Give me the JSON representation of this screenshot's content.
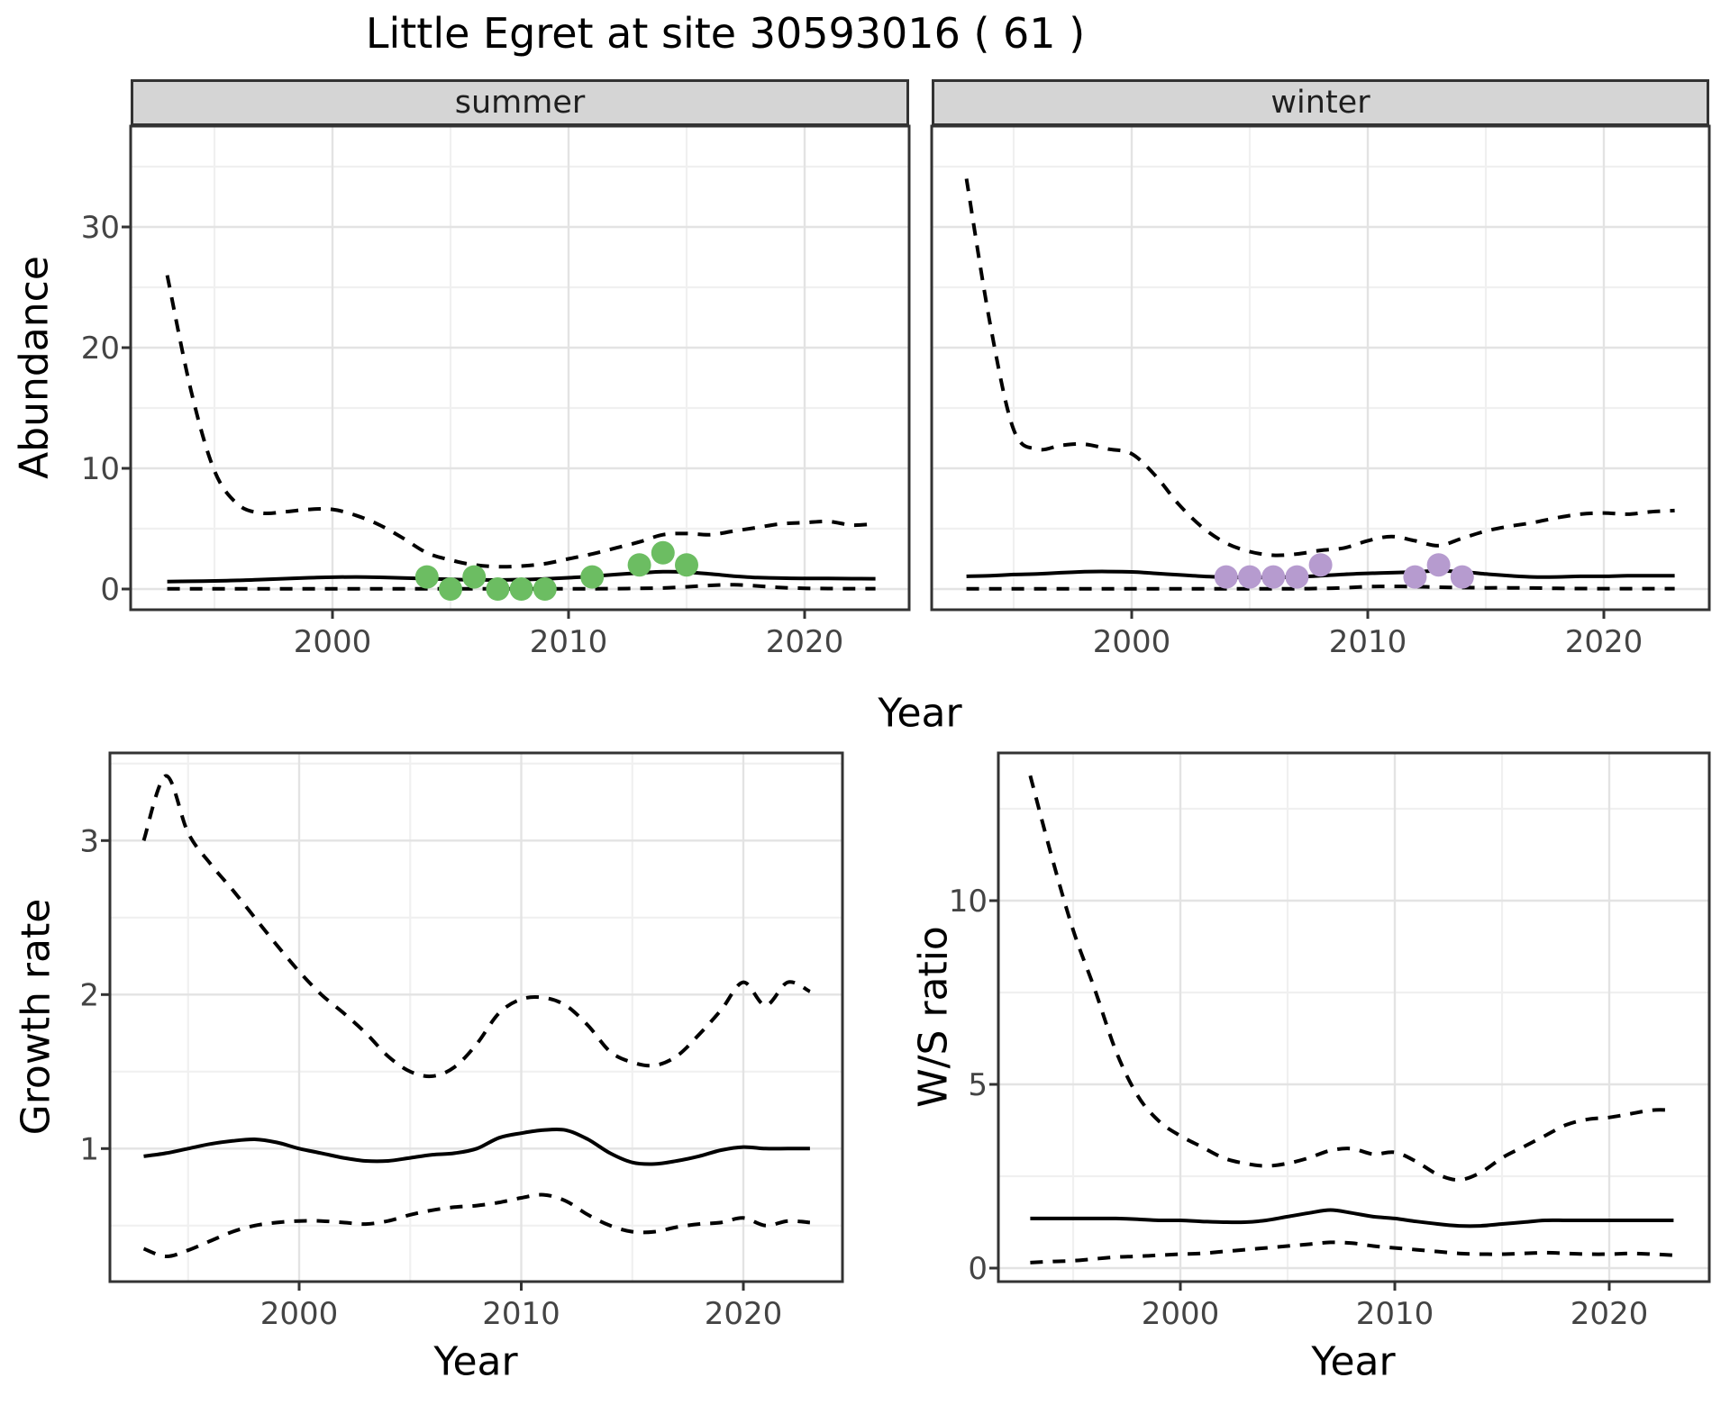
{
  "title": "Little Egret at site 30593016 ( 61 )",
  "colors": {
    "summer_points": "#6cbd62",
    "winter_points": "#b69bcf",
    "line": "#000000",
    "grid_major": "#e3e3e3",
    "grid_minor": "#f0f0f0",
    "strip_bg": "#d5d5d5",
    "panel_border": "#333333",
    "tick_text": "#444444"
  },
  "chart_data": [
    {
      "id": "abundance-summer",
      "type": "line",
      "facet": "summer",
      "xlabel": "Year",
      "ylabel": "Abundance",
      "x_ticks": [
        2000,
        2010,
        2020
      ],
      "x_minor": [
        1995,
        2005,
        2015
      ],
      "y_ticks": [
        0,
        10,
        20,
        30
      ],
      "y_minor": [
        5,
        15,
        25,
        35
      ],
      "x": [
        1993,
        1994,
        1995,
        1996,
        1997,
        1998,
        1999,
        2000,
        2001,
        2002,
        2003,
        2004,
        2005,
        2006,
        2007,
        2008,
        2009,
        2010,
        2011,
        2012,
        2013,
        2014,
        2015,
        2016,
        2017,
        2018,
        2019,
        2020,
        2021,
        2022,
        2023
      ],
      "series": [
        {
          "name": "upper_ci",
          "style": "dashed",
          "y": [
            26.0,
            16.5,
            9.8,
            7.0,
            6.3,
            6.4,
            6.6,
            6.6,
            6.1,
            5.3,
            4.2,
            3.0,
            2.4,
            2.0,
            1.85,
            1.9,
            2.1,
            2.5,
            2.9,
            3.4,
            3.9,
            4.5,
            4.6,
            4.5,
            4.8,
            5.1,
            5.4,
            5.5,
            5.6,
            5.3,
            5.4
          ]
        },
        {
          "name": "mean",
          "style": "solid",
          "y": [
            0.62,
            0.64,
            0.67,
            0.72,
            0.78,
            0.86,
            0.93,
            0.98,
            1.0,
            0.97,
            0.92,
            0.86,
            0.8,
            0.76,
            0.75,
            0.78,
            0.84,
            0.93,
            1.05,
            1.2,
            1.33,
            1.43,
            1.4,
            1.25,
            1.07,
            0.95,
            0.9,
            0.88,
            0.88,
            0.86,
            0.85
          ]
        },
        {
          "name": "lower_ci",
          "style": "dashed",
          "y": [
            0.02,
            0.02,
            0.02,
            0.02,
            0.02,
            0.02,
            0.02,
            0.02,
            0.02,
            0.02,
            0.02,
            0.02,
            0.02,
            0.02,
            0.02,
            0.02,
            0.02,
            0.02,
            0.02,
            0.03,
            0.05,
            0.08,
            0.18,
            0.3,
            0.35,
            0.25,
            0.12,
            0.06,
            0.04,
            0.03,
            0.03
          ]
        }
      ],
      "points": {
        "name": "observed-counts-summer",
        "color_key": "summer_points",
        "x": [
          2004,
          2005,
          2006,
          2007,
          2008,
          2009,
          2011,
          2013,
          2014,
          2015
        ],
        "y": [
          1,
          0,
          1,
          0,
          0,
          0,
          1,
          2,
          3,
          2
        ]
      }
    },
    {
      "id": "abundance-winter",
      "type": "line",
      "facet": "winter",
      "xlabel": "Year",
      "ylabel": "Abundance",
      "x_ticks": [
        2000,
        2010,
        2020
      ],
      "x_minor": [
        1995,
        2005,
        2015
      ],
      "y_ticks": [
        0,
        10,
        20,
        30
      ],
      "y_minor": [
        5,
        15,
        25,
        35
      ],
      "x": [
        1993,
        1994,
        1995,
        1996,
        1997,
        1998,
        1999,
        2000,
        2001,
        2002,
        2003,
        2004,
        2005,
        2006,
        2007,
        2008,
        2009,
        2010,
        2011,
        2012,
        2013,
        2014,
        2015,
        2016,
        2017,
        2018,
        2019,
        2020,
        2021,
        2022,
        2023
      ],
      "series": [
        {
          "name": "upper_ci",
          "style": "dashed",
          "y": [
            34,
            22,
            13.2,
            11.6,
            11.9,
            12.0,
            11.6,
            11.2,
            9.4,
            7.0,
            5.1,
            3.8,
            3.1,
            2.8,
            2.9,
            3.2,
            3.4,
            4.0,
            4.35,
            4.0,
            3.6,
            4.2,
            4.8,
            5.2,
            5.5,
            5.9,
            6.2,
            6.3,
            6.2,
            6.4,
            6.5
          ]
        },
        {
          "name": "mean",
          "style": "solid",
          "y": [
            1.05,
            1.1,
            1.2,
            1.25,
            1.35,
            1.43,
            1.45,
            1.42,
            1.3,
            1.17,
            1.05,
            0.98,
            0.95,
            0.97,
            1.0,
            1.1,
            1.22,
            1.3,
            1.35,
            1.42,
            1.5,
            1.42,
            1.25,
            1.1,
            1.0,
            1.0,
            1.05,
            1.05,
            1.1,
            1.1,
            1.1
          ]
        },
        {
          "name": "lower_ci",
          "style": "dashed",
          "y": [
            0.02,
            0.02,
            0.02,
            0.02,
            0.02,
            0.02,
            0.02,
            0.02,
            0.02,
            0.02,
            0.02,
            0.02,
            0.02,
            0.02,
            0.02,
            0.05,
            0.1,
            0.2,
            0.22,
            0.2,
            0.15,
            0.12,
            0.1,
            0.1,
            0.08,
            0.05,
            0.04,
            0.03,
            0.03,
            0.03,
            0.03
          ]
        }
      ],
      "points": {
        "name": "observed-counts-winter",
        "color_key": "winter_points",
        "x": [
          2004,
          2005,
          2006,
          2007,
          2008,
          2012,
          2013,
          2014
        ],
        "y": [
          1,
          1,
          1,
          1,
          2,
          1,
          2,
          1
        ]
      }
    },
    {
      "id": "growth-rate",
      "type": "line",
      "facet": null,
      "xlabel": "Year",
      "ylabel": "Growth rate",
      "x_ticks": [
        2000,
        2010,
        2020
      ],
      "x_minor": [
        1995,
        2005,
        2015
      ],
      "y_ticks": [
        1,
        2,
        3
      ],
      "y_minor": [
        0.5,
        1.5,
        2.5,
        3.5
      ],
      "x": [
        1993,
        1994,
        1995,
        1996,
        1997,
        1998,
        1999,
        2000,
        2001,
        2002,
        2003,
        2004,
        2005,
        2006,
        2007,
        2008,
        2009,
        2010,
        2011,
        2012,
        2013,
        2014,
        2015,
        2016,
        2017,
        2018,
        2019,
        2020,
        2021,
        2022,
        2023
      ],
      "series": [
        {
          "name": "upper_ci",
          "style": "dashed",
          "y": [
            3.0,
            3.42,
            3.05,
            2.85,
            2.68,
            2.5,
            2.32,
            2.15,
            2.0,
            1.88,
            1.75,
            1.6,
            1.5,
            1.47,
            1.53,
            1.68,
            1.88,
            1.97,
            1.98,
            1.93,
            1.8,
            1.63,
            1.56,
            1.54,
            1.6,
            1.74,
            1.9,
            2.08,
            1.93,
            2.08,
            2.02
          ]
        },
        {
          "name": "mean",
          "style": "solid",
          "y": [
            0.95,
            0.97,
            1.0,
            1.03,
            1.05,
            1.06,
            1.04,
            1.0,
            0.97,
            0.94,
            0.92,
            0.92,
            0.94,
            0.96,
            0.97,
            1.0,
            1.07,
            1.1,
            1.12,
            1.12,
            1.06,
            0.97,
            0.91,
            0.9,
            0.92,
            0.95,
            0.99,
            1.01,
            1.0,
            1.0,
            1.0
          ]
        },
        {
          "name": "lower_ci",
          "style": "dashed",
          "y": [
            0.35,
            0.3,
            0.34,
            0.4,
            0.46,
            0.5,
            0.52,
            0.53,
            0.53,
            0.52,
            0.51,
            0.53,
            0.57,
            0.6,
            0.62,
            0.63,
            0.65,
            0.68,
            0.7,
            0.66,
            0.57,
            0.5,
            0.46,
            0.46,
            0.49,
            0.51,
            0.52,
            0.55,
            0.5,
            0.53,
            0.52
          ]
        }
      ],
      "points": null
    },
    {
      "id": "ws-ratio",
      "type": "line",
      "facet": null,
      "xlabel": "Year",
      "ylabel": "W/S ratio",
      "x_ticks": [
        2000,
        2010,
        2020
      ],
      "x_minor": [
        1995,
        2005,
        2015
      ],
      "y_ticks": [
        0,
        5,
        10
      ],
      "y_minor": [
        2.5,
        7.5,
        12.5
      ],
      "x": [
        1993,
        1994,
        1995,
        1996,
        1997,
        1998,
        1999,
        2000,
        2001,
        2002,
        2003,
        2004,
        2005,
        2006,
        2007,
        2008,
        2009,
        2010,
        2011,
        2012,
        2013,
        2014,
        2015,
        2016,
        2017,
        2018,
        2019,
        2020,
        2021,
        2022,
        2023
      ],
      "series": [
        {
          "name": "upper_ci",
          "style": "dashed",
          "y": [
            13.4,
            11.2,
            9.2,
            7.6,
            5.9,
            4.7,
            4.0,
            3.6,
            3.3,
            3.0,
            2.85,
            2.78,
            2.85,
            3.0,
            3.2,
            3.25,
            3.1,
            3.15,
            2.9,
            2.55,
            2.4,
            2.6,
            3.0,
            3.3,
            3.6,
            3.9,
            4.05,
            4.1,
            4.2,
            4.3,
            4.3
          ]
        },
        {
          "name": "mean",
          "style": "solid",
          "y": [
            1.35,
            1.35,
            1.35,
            1.35,
            1.35,
            1.33,
            1.3,
            1.3,
            1.27,
            1.25,
            1.25,
            1.3,
            1.4,
            1.5,
            1.58,
            1.5,
            1.4,
            1.35,
            1.27,
            1.2,
            1.15,
            1.15,
            1.2,
            1.25,
            1.3,
            1.3,
            1.3,
            1.3,
            1.3,
            1.3,
            1.3
          ]
        },
        {
          "name": "lower_ci",
          "style": "dashed",
          "y": [
            0.15,
            0.18,
            0.2,
            0.25,
            0.3,
            0.32,
            0.35,
            0.38,
            0.4,
            0.45,
            0.5,
            0.55,
            0.6,
            0.65,
            0.7,
            0.68,
            0.6,
            0.55,
            0.5,
            0.45,
            0.4,
            0.38,
            0.38,
            0.4,
            0.42,
            0.4,
            0.38,
            0.38,
            0.4,
            0.38,
            0.35
          ]
        }
      ],
      "points": null
    }
  ]
}
